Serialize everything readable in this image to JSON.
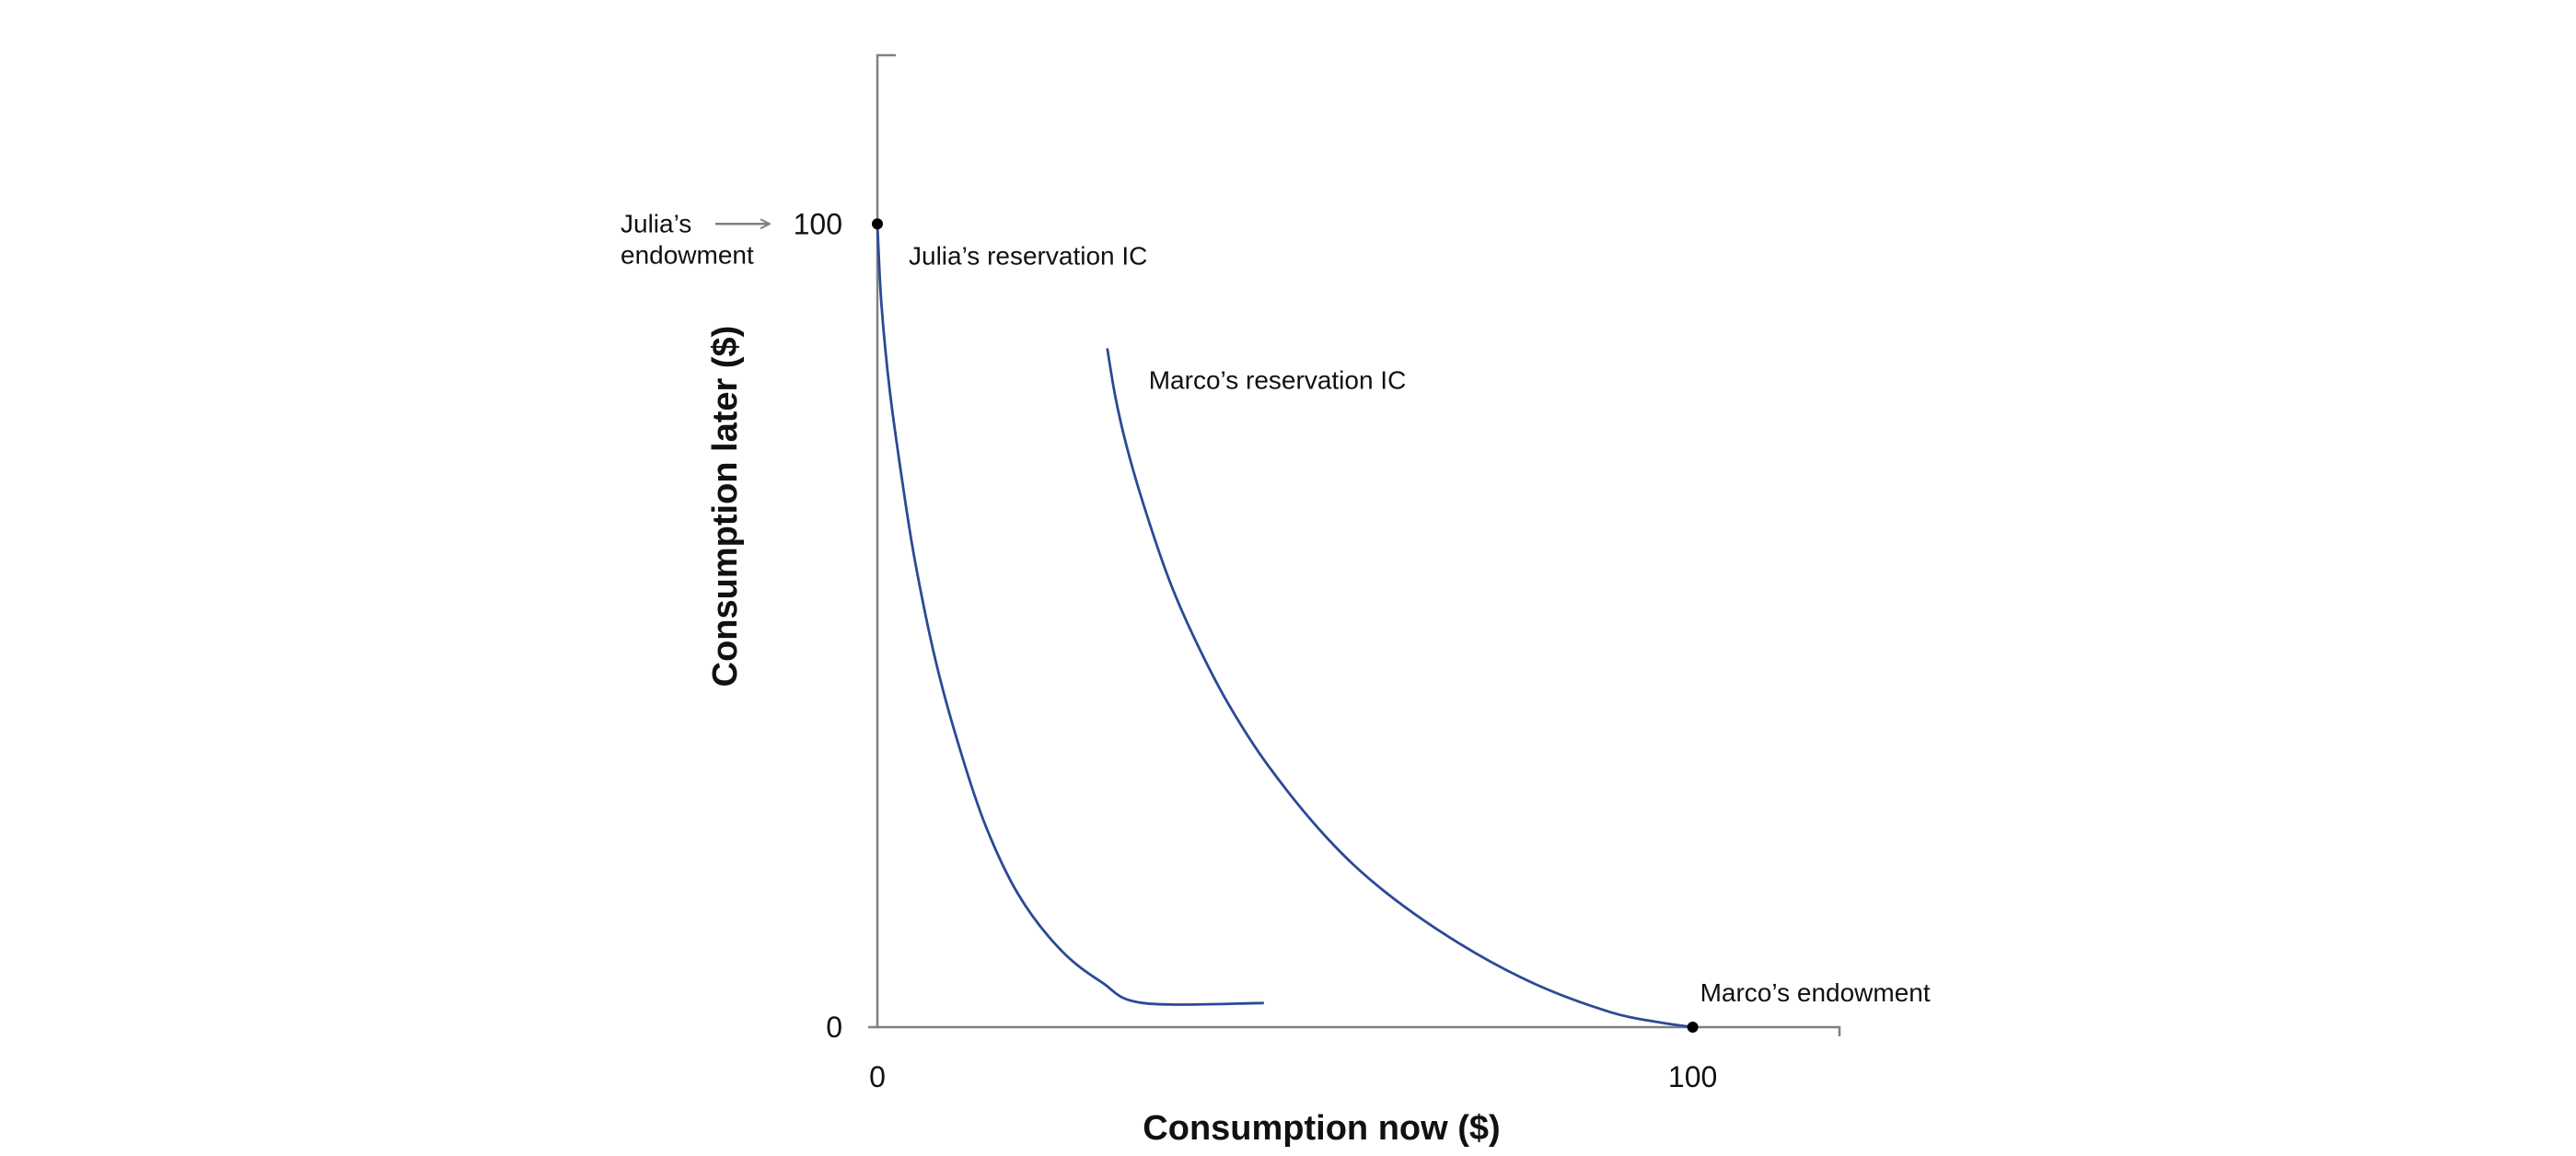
{
  "chart_data": {
    "type": "line",
    "title": "",
    "xlabel": "Consumption now ($)",
    "ylabel": "Consumption later ($)",
    "xlim": [
      0,
      118
    ],
    "ylim": [
      0,
      121
    ],
    "x_ticks": [
      {
        "value": 0,
        "label": "0"
      },
      {
        "value": 100,
        "label": "100"
      }
    ],
    "y_ticks": [
      {
        "value": 0,
        "label": "0"
      },
      {
        "value": 100,
        "label": "100"
      }
    ],
    "grid": false,
    "series": [
      {
        "name": "Julia’s reservation IC",
        "color": "#2b4a96",
        "points": [
          [
            0,
            100
          ],
          [
            0.5,
            90
          ],
          [
            1.5,
            79.4
          ],
          [
            3,
            68.3
          ],
          [
            4.6,
            58.1
          ],
          [
            7.1,
            45.8
          ],
          [
            10,
            35
          ],
          [
            13.3,
            25
          ],
          [
            17.3,
            16.5
          ],
          [
            22.4,
            9.7
          ],
          [
            27.5,
            5.6
          ],
          [
            32.6,
            3
          ],
          [
            47.4,
            3
          ]
        ]
      },
      {
        "name": "Marco’s reservation IC",
        "color": "#2b4a96",
        "points": [
          [
            28.2,
            84.5
          ],
          [
            29.2,
            78.4
          ],
          [
            30.6,
            72.2
          ],
          [
            32.6,
            65.2
          ],
          [
            35.7,
            55.9
          ],
          [
            38.8,
            48.6
          ],
          [
            42.9,
            40.5
          ],
          [
            47.9,
            32.6
          ],
          [
            55.1,
            23.6
          ],
          [
            62.2,
            16.9
          ],
          [
            71.4,
            10.4
          ],
          [
            80.6,
            5.4
          ],
          [
            89.8,
            1.9
          ],
          [
            95.9,
            0.6
          ],
          [
            100,
            0
          ]
        ]
      }
    ],
    "points": [
      {
        "name": "Julia’s endowment",
        "x": 0,
        "y": 100,
        "label_lines": [
          "Julia’s",
          "endowment"
        ]
      },
      {
        "name": "Marco’s endowment",
        "x": 100,
        "y": 0,
        "label_lines": [
          "Marco’s endowment"
        ]
      }
    ],
    "curve_labels": [
      "Julia’s reservation IC",
      "Marco’s reservation IC"
    ]
  }
}
